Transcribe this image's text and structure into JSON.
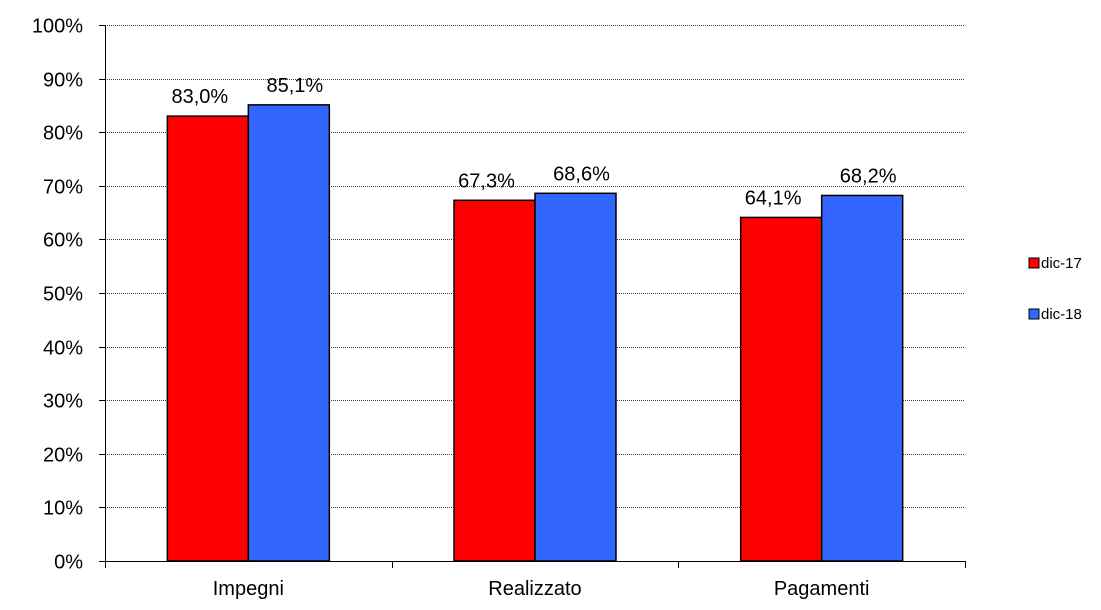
{
  "chart_data": {
    "type": "bar",
    "categories": [
      "Impegni",
      "Realizzato",
      "Pagamenti"
    ],
    "series": [
      {
        "name": "dic-17",
        "values": [
          83.0,
          67.3,
          64.1
        ],
        "labels": [
          "83,0%",
          "67,3%",
          "64,1%"
        ],
        "color": "#ff0000"
      },
      {
        "name": "dic-18",
        "values": [
          85.1,
          68.6,
          68.2
        ],
        "labels": [
          "85,1%",
          "68,6%",
          "68,2%"
        ],
        "color": "#3366ff"
      }
    ],
    "ylim": [
      0,
      100
    ],
    "y_ticks": [
      0,
      10,
      20,
      30,
      40,
      50,
      60,
      70,
      80,
      90,
      100
    ],
    "y_tick_labels": [
      "0%",
      "10%",
      "20%",
      "30%",
      "40%",
      "50%",
      "60%",
      "70%",
      "80%",
      "90%",
      "100%"
    ],
    "grid": true,
    "grid_style": "dotted",
    "legend_position": "right"
  }
}
